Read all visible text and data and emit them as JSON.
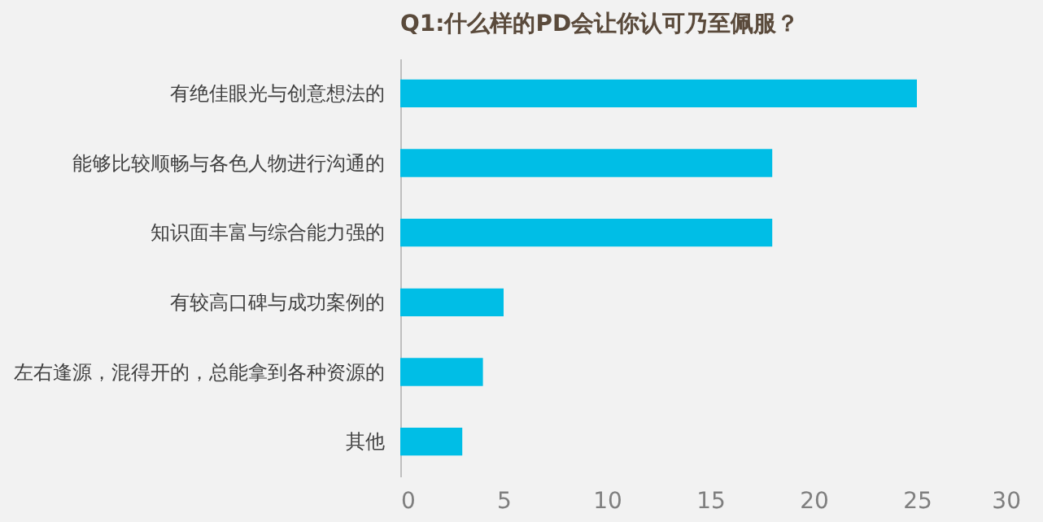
{
  "chart_data": {
    "type": "bar",
    "orientation": "horizontal",
    "title": "Q1:什么样的PD会让你认可乃至佩服？",
    "categories": [
      "有绝佳眼光与创意想法的",
      "能够比较顺畅与各色人物进行沟通的",
      "知识面丰富与综合能力强的",
      "有较高口碑与成功案例的",
      "左右逢源，混得开的，总能拿到各种资源的",
      "其他"
    ],
    "values": [
      25,
      18,
      18,
      5,
      4,
      3
    ],
    "color": "#00bee6",
    "xlim": [
      0,
      30
    ],
    "xticks": [
      0,
      5,
      10,
      15,
      20,
      25,
      30
    ],
    "grid": false
  }
}
